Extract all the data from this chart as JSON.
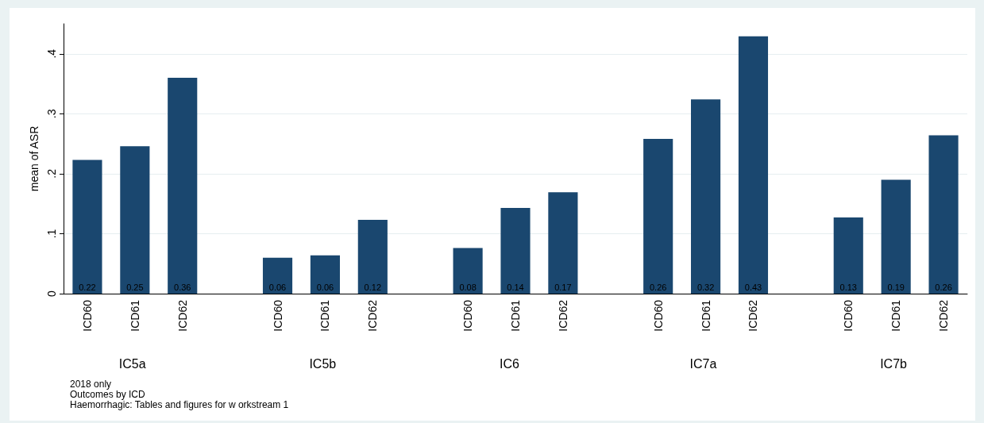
{
  "chart_data": {
    "type": "bar",
    "ylabel": "mean of ASR",
    "categories": [
      "ICD60",
      "ICD61",
      "ICD62",
      "ICD60",
      "ICD61",
      "ICD62",
      "ICD60",
      "ICD61",
      "ICD62",
      "ICD60",
      "ICD61",
      "ICD62",
      "ICD60",
      "ICD61",
      "ICD62"
    ],
    "values": [
      0.223,
      0.246,
      0.36,
      0.06,
      0.064,
      0.123,
      0.076,
      0.143,
      0.169,
      0.258,
      0.324,
      0.429,
      0.127,
      0.19,
      0.264
    ],
    "value_labels": [
      "0.22",
      "0.25",
      "0.36",
      "0.06",
      "0.06",
      "0.12",
      "0.08",
      "0.14",
      "0.17",
      "0.26",
      "0.32",
      "0.43",
      "0.13",
      "0.19",
      "0.26"
    ],
    "color": "#1a476f",
    "ylim": [
      0,
      0.45
    ],
    "yticks": [
      0,
      {
        "value": 0.1,
        "label": ".1"
      },
      {
        "value": 0.2,
        "label": ".2"
      },
      {
        "value": 0.3,
        "label": ".3"
      },
      {
        "value": 0.4,
        "label": ".4"
      }
    ],
    "grid": "y",
    "annotations": [
      "IC5a",
      "IC5b",
      "IC6",
      "IC7a",
      "IC7b",
      "2018 only",
      "Outcomes by ICD",
      "Haemorrhagic: Tables and figures for w orkstream 1"
    ]
  }
}
